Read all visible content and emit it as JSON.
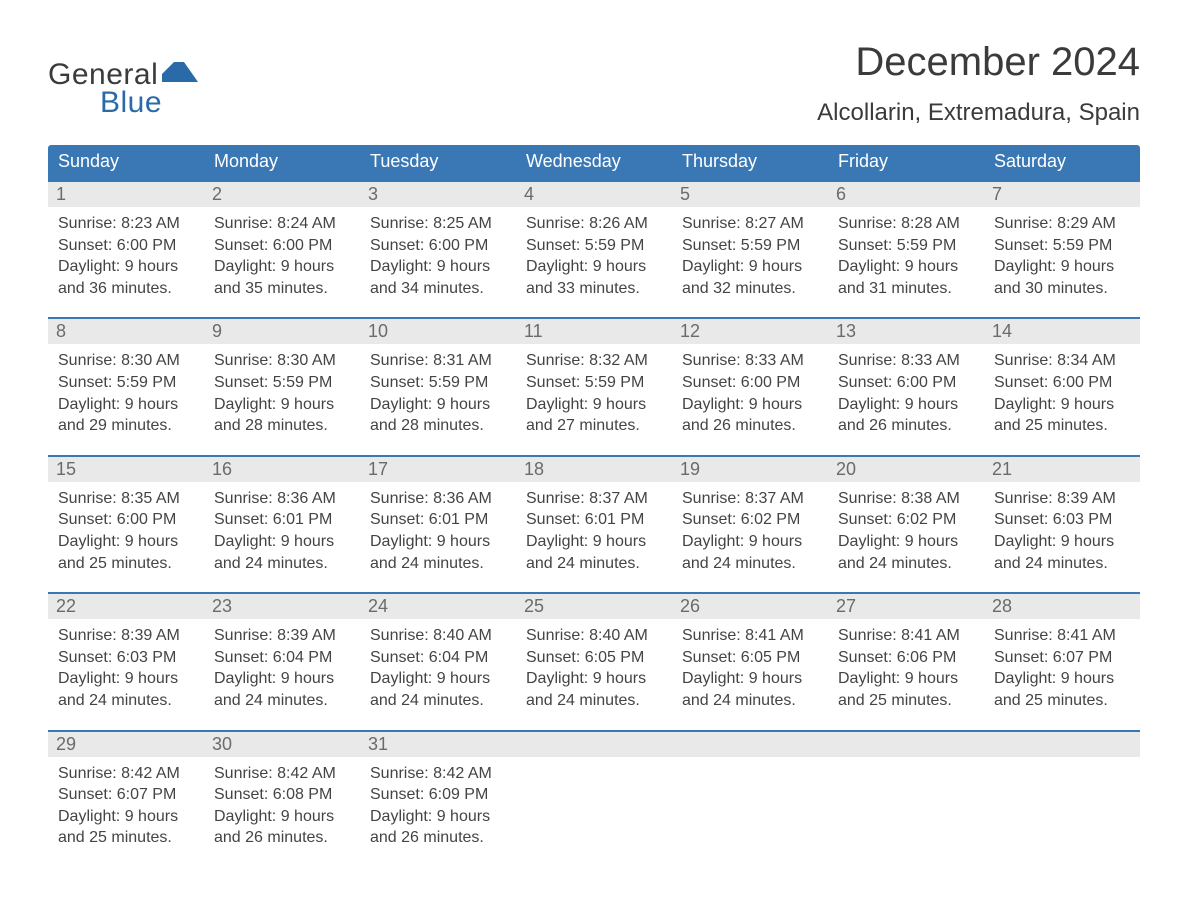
{
  "logo": {
    "text_general": "General",
    "text_blue": "Blue"
  },
  "title": "December 2024",
  "location": "Alcollarin, Extremadura, Spain",
  "colors": {
    "header_bg": "#3a78b5",
    "header_text": "#ffffff",
    "daynum_bg": "#e9e9e9",
    "daynum_text": "#6b6b6b",
    "body_text": "#444444",
    "border": "#3a78b5",
    "logo_blue": "#2b6aa8",
    "logo_dark": "#3b3b3b",
    "page_bg": "#ffffff"
  },
  "typography": {
    "title_fontsize": 40,
    "location_fontsize": 24,
    "dow_fontsize": 18,
    "daynum_fontsize": 18,
    "body_fontsize": 16,
    "font_family": "Arial, Helvetica, sans-serif"
  },
  "days_of_week": [
    "Sunday",
    "Monday",
    "Tuesday",
    "Wednesday",
    "Thursday",
    "Friday",
    "Saturday"
  ],
  "labels": {
    "sunrise": "Sunrise:",
    "sunset": "Sunset:",
    "daylight": "Daylight:"
  },
  "weeks": [
    [
      {
        "n": "1",
        "sunrise": "8:23 AM",
        "sunset": "6:00 PM",
        "daylight1": "9 hours",
        "daylight2": "and 36 minutes."
      },
      {
        "n": "2",
        "sunrise": "8:24 AM",
        "sunset": "6:00 PM",
        "daylight1": "9 hours",
        "daylight2": "and 35 minutes."
      },
      {
        "n": "3",
        "sunrise": "8:25 AM",
        "sunset": "6:00 PM",
        "daylight1": "9 hours",
        "daylight2": "and 34 minutes."
      },
      {
        "n": "4",
        "sunrise": "8:26 AM",
        "sunset": "5:59 PM",
        "daylight1": "9 hours",
        "daylight2": "and 33 minutes."
      },
      {
        "n": "5",
        "sunrise": "8:27 AM",
        "sunset": "5:59 PM",
        "daylight1": "9 hours",
        "daylight2": "and 32 minutes."
      },
      {
        "n": "6",
        "sunrise": "8:28 AM",
        "sunset": "5:59 PM",
        "daylight1": "9 hours",
        "daylight2": "and 31 minutes."
      },
      {
        "n": "7",
        "sunrise": "8:29 AM",
        "sunset": "5:59 PM",
        "daylight1": "9 hours",
        "daylight2": "and 30 minutes."
      }
    ],
    [
      {
        "n": "8",
        "sunrise": "8:30 AM",
        "sunset": "5:59 PM",
        "daylight1": "9 hours",
        "daylight2": "and 29 minutes."
      },
      {
        "n": "9",
        "sunrise": "8:30 AM",
        "sunset": "5:59 PM",
        "daylight1": "9 hours",
        "daylight2": "and 28 minutes."
      },
      {
        "n": "10",
        "sunrise": "8:31 AM",
        "sunset": "5:59 PM",
        "daylight1": "9 hours",
        "daylight2": "and 28 minutes."
      },
      {
        "n": "11",
        "sunrise": "8:32 AM",
        "sunset": "5:59 PM",
        "daylight1": "9 hours",
        "daylight2": "and 27 minutes."
      },
      {
        "n": "12",
        "sunrise": "8:33 AM",
        "sunset": "6:00 PM",
        "daylight1": "9 hours",
        "daylight2": "and 26 minutes."
      },
      {
        "n": "13",
        "sunrise": "8:33 AM",
        "sunset": "6:00 PM",
        "daylight1": "9 hours",
        "daylight2": "and 26 minutes."
      },
      {
        "n": "14",
        "sunrise": "8:34 AM",
        "sunset": "6:00 PM",
        "daylight1": "9 hours",
        "daylight2": "and 25 minutes."
      }
    ],
    [
      {
        "n": "15",
        "sunrise": "8:35 AM",
        "sunset": "6:00 PM",
        "daylight1": "9 hours",
        "daylight2": "and 25 minutes."
      },
      {
        "n": "16",
        "sunrise": "8:36 AM",
        "sunset": "6:01 PM",
        "daylight1": "9 hours",
        "daylight2": "and 24 minutes."
      },
      {
        "n": "17",
        "sunrise": "8:36 AM",
        "sunset": "6:01 PM",
        "daylight1": "9 hours",
        "daylight2": "and 24 minutes."
      },
      {
        "n": "18",
        "sunrise": "8:37 AM",
        "sunset": "6:01 PM",
        "daylight1": "9 hours",
        "daylight2": "and 24 minutes."
      },
      {
        "n": "19",
        "sunrise": "8:37 AM",
        "sunset": "6:02 PM",
        "daylight1": "9 hours",
        "daylight2": "and 24 minutes."
      },
      {
        "n": "20",
        "sunrise": "8:38 AM",
        "sunset": "6:02 PM",
        "daylight1": "9 hours",
        "daylight2": "and 24 minutes."
      },
      {
        "n": "21",
        "sunrise": "8:39 AM",
        "sunset": "6:03 PM",
        "daylight1": "9 hours",
        "daylight2": "and 24 minutes."
      }
    ],
    [
      {
        "n": "22",
        "sunrise": "8:39 AM",
        "sunset": "6:03 PM",
        "daylight1": "9 hours",
        "daylight2": "and 24 minutes."
      },
      {
        "n": "23",
        "sunrise": "8:39 AM",
        "sunset": "6:04 PM",
        "daylight1": "9 hours",
        "daylight2": "and 24 minutes."
      },
      {
        "n": "24",
        "sunrise": "8:40 AM",
        "sunset": "6:04 PM",
        "daylight1": "9 hours",
        "daylight2": "and 24 minutes."
      },
      {
        "n": "25",
        "sunrise": "8:40 AM",
        "sunset": "6:05 PM",
        "daylight1": "9 hours",
        "daylight2": "and 24 minutes."
      },
      {
        "n": "26",
        "sunrise": "8:41 AM",
        "sunset": "6:05 PM",
        "daylight1": "9 hours",
        "daylight2": "and 24 minutes."
      },
      {
        "n": "27",
        "sunrise": "8:41 AM",
        "sunset": "6:06 PM",
        "daylight1": "9 hours",
        "daylight2": "and 25 minutes."
      },
      {
        "n": "28",
        "sunrise": "8:41 AM",
        "sunset": "6:07 PM",
        "daylight1": "9 hours",
        "daylight2": "and 25 minutes."
      }
    ],
    [
      {
        "n": "29",
        "sunrise": "8:42 AM",
        "sunset": "6:07 PM",
        "daylight1": "9 hours",
        "daylight2": "and 25 minutes."
      },
      {
        "n": "30",
        "sunrise": "8:42 AM",
        "sunset": "6:08 PM",
        "daylight1": "9 hours",
        "daylight2": "and 26 minutes."
      },
      {
        "n": "31",
        "sunrise": "8:42 AM",
        "sunset": "6:09 PM",
        "daylight1": "9 hours",
        "daylight2": "and 26 minutes."
      },
      null,
      null,
      null,
      null
    ]
  ]
}
